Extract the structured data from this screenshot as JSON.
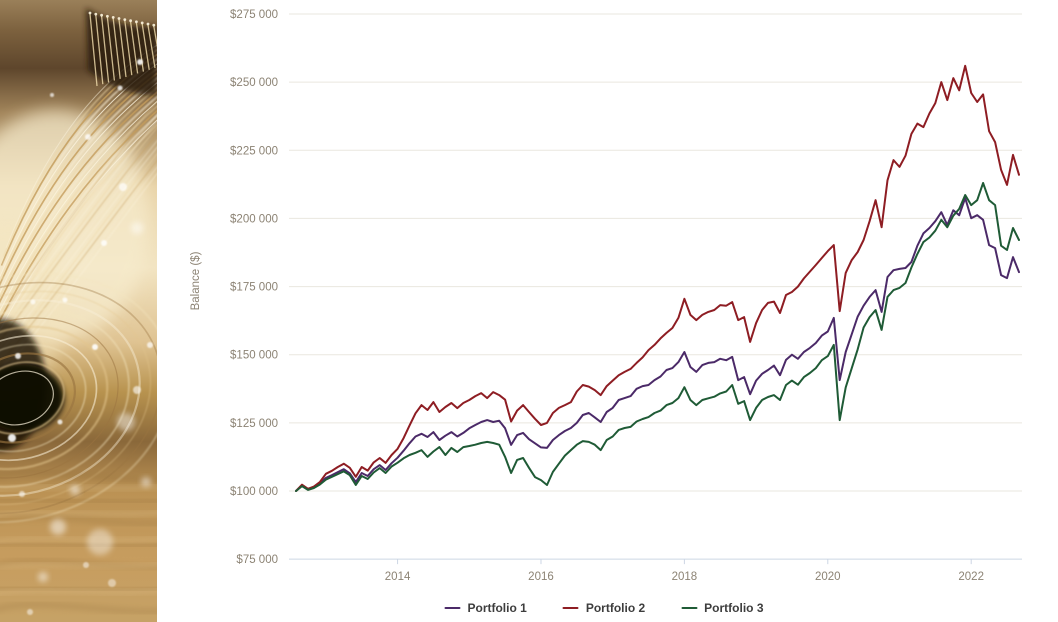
{
  "photo": {
    "alt": "golden-fiber-optic-strands-photo"
  },
  "chart": {
    "y_axis_title": "Balance ($)",
    "y_ticks": [
      {
        "v": 75000,
        "label": "$75 000"
      },
      {
        "v": 100000,
        "label": "$100 000"
      },
      {
        "v": 125000,
        "label": "$125 000"
      },
      {
        "v": 150000,
        "label": "$150 000"
      },
      {
        "v": 175000,
        "label": "$175 000"
      },
      {
        "v": 200000,
        "label": "$200 000"
      },
      {
        "v": 225000,
        "label": "$225 000"
      },
      {
        "v": 250000,
        "label": "$250 000"
      },
      {
        "v": 275000,
        "label": "$275 000"
      }
    ],
    "x_ticks": [
      2014,
      2016,
      2018,
      2020,
      2022
    ],
    "legend": [
      {
        "label": "Portfolio 1",
        "color": "#4b2a68"
      },
      {
        "label": "Portfolio 2",
        "color": "#8e1d23"
      },
      {
        "label": "Portfolio 3",
        "color": "#1f5b36"
      }
    ],
    "colors": {
      "tick_text": "#8c8374",
      "gridline": "#eae7df",
      "axis": "#ccd6e4"
    }
  },
  "chart_data": {
    "type": "line",
    "title": "",
    "xlabel": "",
    "ylabel": "Balance ($)",
    "ylim": [
      75000,
      275000
    ],
    "x_start_month": "2012-08",
    "x_end_month": "2022-09",
    "frequency": "monthly",
    "points_per_series": 122,
    "legend_position": "bottom",
    "grid": "horizontal-only",
    "series": [
      {
        "name": "Portfolio 1",
        "color": "#4b2a68",
        "values": [
          100000,
          102000,
          100600,
          101300,
          102800,
          104800,
          105800,
          106900,
          108000,
          106500,
          103300,
          106600,
          105500,
          108000,
          109500,
          107700,
          110200,
          112200,
          114800,
          117500,
          120000,
          121000,
          119800,
          121600,
          118700,
          120300,
          121600,
          120000,
          121300,
          123000,
          124200,
          125300,
          126000,
          125300,
          125800,
          123000,
          116900,
          120500,
          121300,
          119000,
          117500,
          116000,
          115800,
          118700,
          120500,
          122000,
          123100,
          125000,
          127900,
          128600,
          127000,
          125300,
          129000,
          130500,
          133400,
          134100,
          134800,
          137500,
          138500,
          138900,
          140700,
          142000,
          144400,
          145100,
          147300,
          151000,
          145500,
          143700,
          146200,
          147000,
          147300,
          148500,
          148000,
          149200,
          140700,
          141800,
          135500,
          140500,
          143000,
          144400,
          146000,
          142500,
          148100,
          150000,
          148500,
          151000,
          152500,
          154300,
          157000,
          158500,
          163500,
          140700,
          151000,
          157500,
          164000,
          168000,
          171200,
          173700,
          165700,
          178500,
          181000,
          181500,
          181800,
          184000,
          190000,
          194500,
          196500,
          199000,
          202300,
          197600,
          203000,
          201200,
          207500,
          200100,
          201200,
          199500,
          190200,
          189100,
          179200,
          178100,
          185800,
          180300
        ]
      },
      {
        "name": "Portfolio 2",
        "color": "#8e1d23",
        "values": [
          100000,
          102300,
          100800,
          101600,
          103300,
          106300,
          107400,
          108800,
          110000,
          108500,
          105200,
          108800,
          107500,
          110500,
          112100,
          110300,
          113200,
          115500,
          119400,
          124000,
          128500,
          131500,
          129700,
          132600,
          129000,
          130800,
          132300,
          130400,
          132300,
          133400,
          134800,
          135900,
          134100,
          136300,
          135200,
          133500,
          125500,
          129500,
          131500,
          129000,
          126500,
          124200,
          125000,
          128600,
          130500,
          131500,
          132600,
          136500,
          138900,
          138300,
          137000,
          135200,
          138500,
          140500,
          142500,
          143700,
          144800,
          147000,
          149000,
          151700,
          153600,
          156000,
          158000,
          159800,
          163500,
          170500,
          164600,
          162700,
          164600,
          165700,
          166400,
          168200,
          168000,
          169300,
          162700,
          163800,
          154700,
          161600,
          166400,
          169000,
          169500,
          165300,
          171900,
          173000,
          175000,
          178000,
          180500,
          182900,
          185500,
          188000,
          190200,
          166000,
          180000,
          184700,
          187700,
          192100,
          199000,
          206700,
          196800,
          214000,
          221400,
          218900,
          223000,
          231000,
          234800,
          233500,
          238500,
          242300,
          250000,
          243400,
          251500,
          247000,
          256000,
          246000,
          242700,
          245500,
          232000,
          228000,
          217800,
          212300,
          223300,
          216000
        ]
      },
      {
        "name": "Portfolio 3",
        "color": "#1f5b36",
        "values": [
          100000,
          101800,
          100400,
          101100,
          102400,
          104200,
          105200,
          106200,
          107200,
          105800,
          102200,
          105500,
          104400,
          106800,
          108400,
          106600,
          109000,
          110400,
          112000,
          113200,
          114000,
          115000,
          112500,
          114500,
          116100,
          113200,
          115800,
          114300,
          116100,
          116500,
          117000,
          117600,
          118000,
          117600,
          117000,
          112500,
          106600,
          111400,
          112100,
          108500,
          105100,
          104000,
          102200,
          107000,
          110000,
          113000,
          115000,
          117000,
          118300,
          118000,
          117000,
          115000,
          118700,
          120000,
          122400,
          123100,
          123500,
          125500,
          126400,
          127100,
          128600,
          129500,
          131500,
          132300,
          134100,
          138100,
          133400,
          131500,
          133400,
          134000,
          134600,
          135800,
          136500,
          138900,
          132000,
          133000,
          126000,
          130500,
          133400,
          134500,
          135200,
          133400,
          138900,
          140500,
          139000,
          141800,
          143300,
          145100,
          148000,
          149500,
          153600,
          126000,
          138000,
          145000,
          152000,
          160000,
          163800,
          166400,
          159100,
          171200,
          173700,
          174500,
          176300,
          182000,
          187000,
          191300,
          193000,
          195500,
          199500,
          196800,
          201000,
          203500,
          208600,
          204900,
          206700,
          213000,
          206700,
          204900,
          190000,
          188400,
          196500,
          192100
        ]
      }
    ]
  }
}
